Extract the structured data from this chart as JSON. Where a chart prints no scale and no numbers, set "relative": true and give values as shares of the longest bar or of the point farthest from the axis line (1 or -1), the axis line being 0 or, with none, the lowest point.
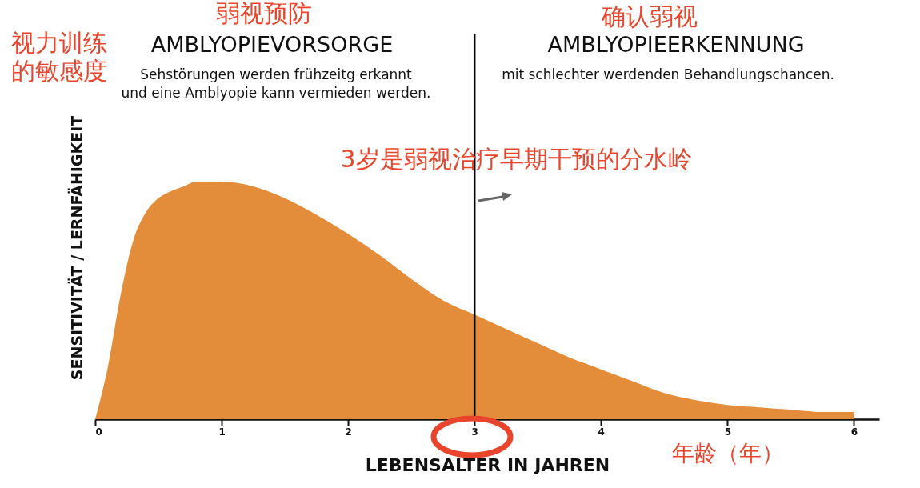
{
  "chart_data": {
    "type": "area",
    "relative": true,
    "xlabel": "LEBENSALTER IN JAHREN",
    "ylabel": "SENSITIVITÄT / LERNFÄHIGKEIT",
    "x": [
      0,
      0.1,
      0.2,
      0.3,
      0.4,
      0.5,
      0.6,
      0.7,
      0.8,
      0.9,
      1,
      1.25,
      1.5,
      1.75,
      2,
      2.25,
      2.5,
      2.75,
      3,
      3.25,
      3.5,
      3.75,
      4,
      4.25,
      4.5,
      4.75,
      5,
      5.25,
      5.5,
      5.75,
      6
    ],
    "values": [
      0,
      0.22,
      0.52,
      0.75,
      0.87,
      0.93,
      0.96,
      0.98,
      1,
      1,
      1,
      0.98,
      0.93,
      0.86,
      0.78,
      0.69,
      0.59,
      0.5,
      0.44,
      0.38,
      0.32,
      0.26,
      0.21,
      0.16,
      0.11,
      0.08,
      0.06,
      0.05,
      0.04,
      0.03,
      0.03
    ],
    "color": "#e38c3a",
    "xlim": [
      0,
      6.2
    ],
    "xticks": [
      0,
      1,
      2,
      3,
      4,
      5,
      6
    ],
    "ref_lines": [
      {
        "axis": "x",
        "value": 3,
        "color": "#000000"
      }
    ],
    "annotations": [
      "视力训练的敏感度",
      "弱视预防",
      "AMBLYOPIEVORSORGE",
      "Sehstörungen werden frühzeitg erkannt",
      "und eine Amblyopie kann vermieden werden.",
      "确认弱视",
      "AMBLYOPIEERKENNUNG",
      "mit schlechter werdenden Behandlungschancen.",
      "3岁是弱视治疗早期干预的分水岭",
      "年龄（年）"
    ]
  }
}
